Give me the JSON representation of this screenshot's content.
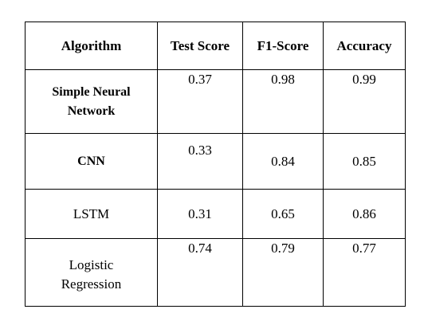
{
  "table": {
    "headers": [
      "Algorithm",
      "Test Score",
      "F1-Score",
      "Accuracy"
    ],
    "rows": [
      {
        "algorithm_lines": [
          "Simple Neural",
          "Network"
        ],
        "test_score": "0.37",
        "f1_score": "0.98",
        "accuracy": "0.99"
      },
      {
        "algorithm_lines": [
          "CNN"
        ],
        "test_score": "0.33",
        "f1_score": "0.84",
        "accuracy": "0.85"
      },
      {
        "algorithm_lines": [
          "LSTM"
        ],
        "test_score": "0.31",
        "f1_score": "0.65",
        "accuracy": "0.86"
      },
      {
        "algorithm_lines": [
          "Logistic",
          "Regression"
        ],
        "test_score": "0.74",
        "f1_score": "0.79",
        "accuracy": "0.77"
      }
    ]
  }
}
